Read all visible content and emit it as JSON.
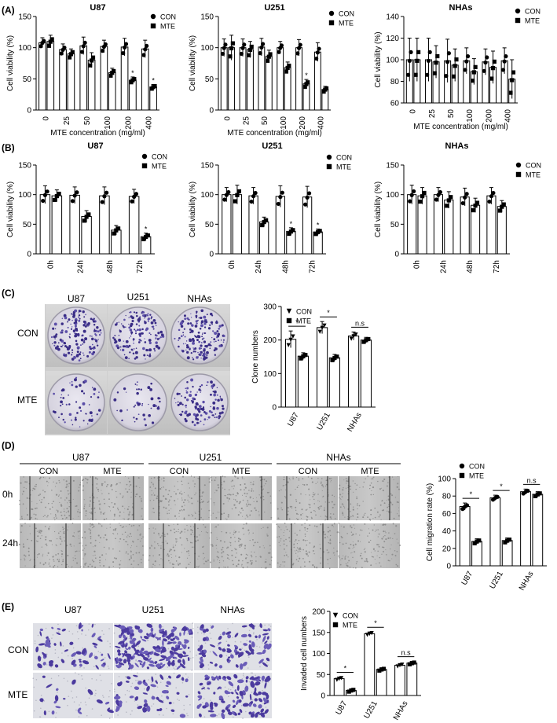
{
  "panels": {
    "A": {
      "label": "(A)"
    },
    "B": {
      "label": "(B)"
    },
    "C": {
      "label": "(C)",
      "photo_cols": [
        "U87",
        "U251",
        "NHAs"
      ],
      "photo_rows": [
        "CON",
        "MTE"
      ]
    },
    "D": {
      "label": "(D)",
      "groups": [
        "U87",
        "U251",
        "NHAs"
      ],
      "sub_cols": [
        "CON",
        "MTE"
      ],
      "rows": [
        "0h",
        "24h"
      ]
    },
    "E": {
      "label": "(E)",
      "photo_cols": [
        "U87",
        "U251",
        "NHAs"
      ],
      "photo_rows": [
        "CON",
        "MTE"
      ]
    }
  },
  "chart_data": [
    {
      "id": "A-U87",
      "type": "bar",
      "title": "U87",
      "xlabel": "MTE concentration (mg/ml)",
      "ylabel": "Cell viability (%)",
      "categories": [
        "0",
        "25",
        "50",
        "100",
        "200",
        "400"
      ],
      "ylim": [
        0,
        150
      ],
      "yticks": [
        "0",
        "50",
        "100",
        "150"
      ],
      "legend": [
        "CON",
        "MTE"
      ],
      "legend_markers": [
        "circle",
        "square"
      ],
      "series": [
        {
          "name": "CON",
          "values": [
            108,
            97,
            103,
            102,
            101,
            98
          ]
        },
        {
          "name": "MTE",
          "values": [
            110,
            90,
            80,
            60,
            48,
            37
          ]
        }
      ],
      "errors": [
        [
          8,
          9,
          14,
          10,
          14,
          14
        ],
        [
          10,
          8,
          12,
          7,
          5,
          4
        ]
      ],
      "sig_marks": [
        null,
        null,
        null,
        null,
        "*",
        "*"
      ]
    },
    {
      "id": "A-U251",
      "type": "bar",
      "title": "U251",
      "xlabel": "MTE concentration (mg/ml)",
      "ylabel": "Cell viability (%)",
      "categories": [
        "0",
        "25",
        "50",
        "100",
        "200",
        "400"
      ],
      "ylim": [
        0,
        150
      ],
      "yticks": [
        "0",
        "50",
        "100",
        "150"
      ],
      "legend": [
        "CON",
        "MTE"
      ],
      "legend_markers": [
        "circle",
        "square"
      ],
      "series": [
        {
          "name": "CON",
          "values": [
            100,
            100,
            101,
            100,
            100,
            93
          ]
        },
        {
          "name": "MTE",
          "values": [
            100,
            97,
            86,
            68,
            42,
            33
          ]
        }
      ],
      "errors": [
        [
          14,
          14,
          14,
          10,
          13,
          15
        ],
        [
          20,
          13,
          10,
          9,
          7,
          5
        ]
      ],
      "sig_marks": [
        null,
        null,
        null,
        null,
        "*",
        null
      ]
    },
    {
      "id": "A-NHAs",
      "type": "bar",
      "title": "NHAs",
      "xlabel": "MTE concentration (mg/ml)",
      "ylabel": "Cell viability (%)",
      "categories": [
        "0",
        "25",
        "50",
        "100",
        "200",
        "400"
      ],
      "ylim": [
        60,
        140
      ],
      "yticks": [
        "60",
        "80",
        "100",
        "120",
        "140"
      ],
      "legend": [
        "CON",
        "MTE"
      ],
      "legend_markers": [
        "circle",
        "square"
      ],
      "series": [
        {
          "name": "CON",
          "values": [
            100,
            100,
            99,
            99,
            98,
            99
          ]
        },
        {
          "name": "MTE",
          "values": [
            100,
            98,
            95,
            89,
            93,
            82
          ]
        }
      ],
      "errors": [
        [
          20,
          20,
          20,
          12,
          12,
          12
        ],
        [
          20,
          15,
          15,
          12,
          15,
          18
        ]
      ],
      "sig_marks": [
        null,
        null,
        null,
        null,
        null,
        null
      ]
    },
    {
      "id": "B-U87",
      "type": "bar",
      "title": "U87",
      "xlabel": "",
      "ylabel": "Cell viability (%)",
      "categories": [
        "0h",
        "24h",
        "48h",
        "72h"
      ],
      "ylim": [
        0,
        150
      ],
      "yticks": [
        "0",
        "50",
        "100",
        "150"
      ],
      "legend": [
        "CON",
        "MTE"
      ],
      "legend_markers": [
        "circle",
        "square"
      ],
      "series": [
        {
          "name": "CON",
          "values": [
            100,
            99,
            98,
            97
          ]
        },
        {
          "name": "MTE",
          "values": [
            98,
            63,
            40,
            29
          ]
        }
      ],
      "errors": [
        [
          15,
          14,
          15,
          12
        ],
        [
          10,
          10,
          8,
          6
        ]
      ],
      "sig_marks": [
        null,
        null,
        null,
        "*"
      ]
    },
    {
      "id": "B-U251",
      "type": "bar",
      "title": "U251",
      "xlabel": "",
      "ylabel": "Cell viability (%)",
      "categories": [
        "0h",
        "24h",
        "48h",
        "72h"
      ],
      "ylim": [
        0,
        150
      ],
      "yticks": [
        "0",
        "50",
        "100",
        "150"
      ],
      "legend": [
        "CON",
        "MTE"
      ],
      "legend_markers": [
        "circle",
        "square"
      ],
      "series": [
        {
          "name": "CON",
          "values": [
            100,
            98,
            97,
            96
          ]
        },
        {
          "name": "MTE",
          "values": [
            100,
            54,
            38,
            37
          ]
        }
      ],
      "errors": [
        [
          12,
          14,
          18,
          18
        ],
        [
          16,
          8,
          6,
          5
        ]
      ],
      "sig_marks": [
        null,
        null,
        "*",
        "*"
      ]
    },
    {
      "id": "B-NHAs",
      "type": "bar",
      "title": "NHAs",
      "xlabel": "",
      "ylabel": "Cell viability (%)",
      "categories": [
        "0h",
        "24h",
        "48h",
        "72h"
      ],
      "ylim": [
        0,
        150
      ],
      "yticks": [
        "0",
        "50",
        "100",
        "150"
      ],
      "legend": [
        "CON",
        "MTE"
      ],
      "legend_markers": [
        "circle",
        "square"
      ],
      "series": [
        {
          "name": "CON",
          "values": [
            100,
            100,
            96,
            98
          ]
        },
        {
          "name": "MTE",
          "values": [
            98,
            91,
            82,
            80
          ]
        }
      ],
      "errors": [
        [
          16,
          12,
          15,
          14
        ],
        [
          14,
          14,
          12,
          10
        ]
      ],
      "sig_marks": [
        null,
        null,
        null,
        null
      ]
    },
    {
      "id": "C-clones",
      "type": "bar",
      "title": "",
      "xlabel": "",
      "ylabel": "Clone numbers",
      "categories": [
        "U87",
        "U251",
        "NHAs"
      ],
      "ylim": [
        0,
        300
      ],
      "yticks": [
        "0",
        "100",
        "200",
        "300"
      ],
      "legend": [
        "CON",
        "MTE"
      ],
      "legend_markers": [
        "triangle",
        "square"
      ],
      "series": [
        {
          "name": "CON",
          "values": [
            202,
            237,
            212
          ]
        },
        {
          "name": "MTE",
          "values": [
            152,
            147,
            200
          ]
        }
      ],
      "errors": [
        [
          25,
          18,
          12
        ],
        [
          10,
          10,
          8
        ]
      ],
      "sig_marks": [
        "*",
        "*",
        "n.s"
      ]
    },
    {
      "id": "D-migration",
      "type": "bar",
      "title": "",
      "xlabel": "",
      "ylabel": "Cell migration rate (%)",
      "categories": [
        "U87",
        "U251",
        "NHAs"
      ],
      "ylim": [
        0,
        100
      ],
      "yticks": [
        "0",
        "20",
        "40",
        "60",
        "80",
        "100"
      ],
      "legend": [
        "CON",
        "MTE"
      ],
      "legend_markers": [
        "circle",
        "square"
      ],
      "series": [
        {
          "name": "CON",
          "values": [
            68,
            78,
            85
          ]
        },
        {
          "name": "MTE",
          "values": [
            28,
            29,
            82
          ]
        }
      ],
      "errors": [
        [
          4,
          3,
          3
        ],
        [
          3,
          3,
          3
        ]
      ],
      "sig_marks": [
        "*",
        "*",
        "n.s"
      ]
    },
    {
      "id": "E-invasion",
      "type": "bar",
      "title": "",
      "xlabel": "",
      "ylabel": "Invaded cell numbers",
      "categories": [
        "U87",
        "U251",
        "NHAs"
      ],
      "ylim": [
        0,
        200
      ],
      "yticks": [
        "0",
        "50",
        "100",
        "150",
        "200"
      ],
      "legend": [
        "CON",
        "MTE"
      ],
      "legend_markers": [
        "triangle",
        "square"
      ],
      "series": [
        {
          "name": "CON",
          "values": [
            40,
            147,
            72
          ]
        },
        {
          "name": "MTE",
          "values": [
            12,
            62,
            77
          ]
        }
      ],
      "errors": [
        [
          4,
          4,
          4
        ],
        [
          4,
          4,
          4
        ]
      ],
      "sig_marks": [
        "*",
        "*",
        "n.s"
      ]
    }
  ]
}
